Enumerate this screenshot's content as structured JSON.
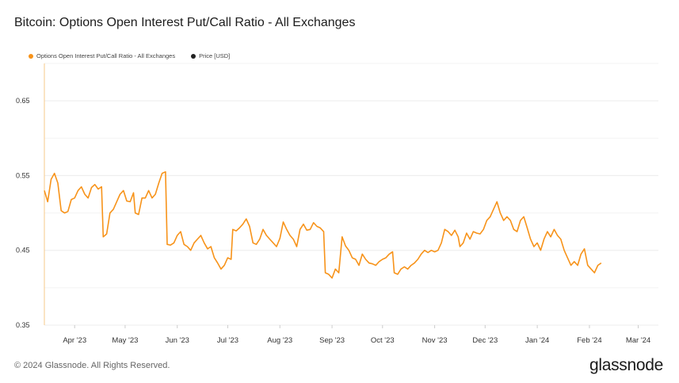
{
  "title": "Bitcoin: Options Open Interest Put/Call Ratio - All Exchanges",
  "legend": {
    "series_label": "Options Open Interest Put/Call Ratio - All Exchanges",
    "price_label": "Price [USD]"
  },
  "footer": {
    "copyright": "© 2024 Glassnode. All Rights Reserved.",
    "brand": "glassnode"
  },
  "colors": {
    "series": "#f7931a",
    "price": "#222222",
    "grid": "#ececec"
  },
  "chart_data": {
    "type": "line",
    "title": "Bitcoin: Options Open Interest Put/Call Ratio - All Exchanges",
    "ylim": [
      0.35,
      0.7
    ],
    "y_ticks": [
      "0.65",
      "0.55",
      "0.45",
      "0.35"
    ],
    "x_ticks": [
      "Apr '23",
      "May '23",
      "Jun '23",
      "Jul '23",
      "Aug '23",
      "Sep '23",
      "Oct '23",
      "Nov '23",
      "Dec '23",
      "Jan '24",
      "Feb '24",
      "Mar '24"
    ],
    "xlim": [
      "2023-03-14",
      "2024-03-13"
    ],
    "grid": true,
    "legend_position": "top-left",
    "series": [
      {
        "name": "Options Open Interest Put/Call Ratio - All Exchanges",
        "color": "#f7931a",
        "points": [
          [
            "2023-03-14",
            0.53
          ],
          [
            "2023-03-16",
            0.515
          ],
          [
            "2023-03-18",
            0.545
          ],
          [
            "2023-03-20",
            0.553
          ],
          [
            "2023-03-22",
            0.54
          ],
          [
            "2023-03-24",
            0.503
          ],
          [
            "2023-03-26",
            0.5
          ],
          [
            "2023-03-28",
            0.502
          ],
          [
            "2023-03-30",
            0.518
          ],
          [
            "2023-04-01",
            0.52
          ],
          [
            "2023-04-03",
            0.53
          ],
          [
            "2023-04-05",
            0.535
          ],
          [
            "2023-04-07",
            0.525
          ],
          [
            "2023-04-09",
            0.52
          ],
          [
            "2023-04-11",
            0.534
          ],
          [
            "2023-04-13",
            0.538
          ],
          [
            "2023-04-15",
            0.532
          ],
          [
            "2023-04-17",
            0.535
          ],
          [
            "2023-04-18",
            0.468
          ],
          [
            "2023-04-20",
            0.472
          ],
          [
            "2023-04-22",
            0.5
          ],
          [
            "2023-04-24",
            0.505
          ],
          [
            "2023-04-26",
            0.515
          ],
          [
            "2023-04-28",
            0.525
          ],
          [
            "2023-04-30",
            0.53
          ],
          [
            "2023-05-02",
            0.516
          ],
          [
            "2023-05-04",
            0.515
          ],
          [
            "2023-05-06",
            0.527
          ],
          [
            "2023-05-07",
            0.5
          ],
          [
            "2023-05-09",
            0.498
          ],
          [
            "2023-05-11",
            0.52
          ],
          [
            "2023-05-13",
            0.52
          ],
          [
            "2023-05-15",
            0.53
          ],
          [
            "2023-05-17",
            0.52
          ],
          [
            "2023-05-19",
            0.525
          ],
          [
            "2023-05-21",
            0.54
          ],
          [
            "2023-05-23",
            0.553
          ],
          [
            "2023-05-25",
            0.555
          ],
          [
            "2023-05-26",
            0.458
          ],
          [
            "2023-05-28",
            0.457
          ],
          [
            "2023-05-30",
            0.46
          ],
          [
            "2023-06-01",
            0.47
          ],
          [
            "2023-06-03",
            0.475
          ],
          [
            "2023-06-05",
            0.458
          ],
          [
            "2023-06-07",
            0.455
          ],
          [
            "2023-06-09",
            0.45
          ],
          [
            "2023-06-11",
            0.46
          ],
          [
            "2023-06-13",
            0.465
          ],
          [
            "2023-06-15",
            0.47
          ],
          [
            "2023-06-17",
            0.46
          ],
          [
            "2023-06-19",
            0.452
          ],
          [
            "2023-06-21",
            0.455
          ],
          [
            "2023-06-23",
            0.44
          ],
          [
            "2023-06-25",
            0.433
          ],
          [
            "2023-06-27",
            0.425
          ],
          [
            "2023-06-29",
            0.43
          ],
          [
            "2023-07-01",
            0.44
          ],
          [
            "2023-07-03",
            0.438
          ],
          [
            "2023-07-04",
            0.478
          ],
          [
            "2023-07-06",
            0.476
          ],
          [
            "2023-07-08",
            0.48
          ],
          [
            "2023-07-10",
            0.485
          ],
          [
            "2023-07-12",
            0.492
          ],
          [
            "2023-07-14",
            0.482
          ],
          [
            "2023-07-16",
            0.46
          ],
          [
            "2023-07-18",
            0.458
          ],
          [
            "2023-07-20",
            0.465
          ],
          [
            "2023-07-22",
            0.478
          ],
          [
            "2023-07-24",
            0.47
          ],
          [
            "2023-07-26",
            0.465
          ],
          [
            "2023-07-28",
            0.46
          ],
          [
            "2023-07-30",
            0.455
          ],
          [
            "2023-08-01",
            0.466
          ],
          [
            "2023-08-03",
            0.488
          ],
          [
            "2023-08-05",
            0.478
          ],
          [
            "2023-08-07",
            0.47
          ],
          [
            "2023-08-09",
            0.465
          ],
          [
            "2023-08-11",
            0.455
          ],
          [
            "2023-08-13",
            0.478
          ],
          [
            "2023-08-15",
            0.485
          ],
          [
            "2023-08-17",
            0.477
          ],
          [
            "2023-08-19",
            0.478
          ],
          [
            "2023-08-21",
            0.487
          ],
          [
            "2023-08-23",
            0.482
          ],
          [
            "2023-08-25",
            0.48
          ],
          [
            "2023-08-27",
            0.475
          ],
          [
            "2023-08-28",
            0.42
          ],
          [
            "2023-08-30",
            0.418
          ],
          [
            "2023-09-01",
            0.413
          ],
          [
            "2023-09-03",
            0.425
          ],
          [
            "2023-09-05",
            0.42
          ],
          [
            "2023-09-07",
            0.468
          ],
          [
            "2023-09-09",
            0.456
          ],
          [
            "2023-09-11",
            0.45
          ],
          [
            "2023-09-13",
            0.44
          ],
          [
            "2023-09-15",
            0.438
          ],
          [
            "2023-09-17",
            0.43
          ],
          [
            "2023-09-19",
            0.445
          ],
          [
            "2023-09-21",
            0.438
          ],
          [
            "2023-09-23",
            0.433
          ],
          [
            "2023-09-25",
            0.432
          ],
          [
            "2023-09-27",
            0.43
          ],
          [
            "2023-09-29",
            0.435
          ],
          [
            "2023-10-01",
            0.438
          ],
          [
            "2023-10-03",
            0.44
          ],
          [
            "2023-10-05",
            0.445
          ],
          [
            "2023-10-07",
            0.448
          ],
          [
            "2023-10-08",
            0.42
          ],
          [
            "2023-10-10",
            0.418
          ],
          [
            "2023-10-12",
            0.425
          ],
          [
            "2023-10-14",
            0.428
          ],
          [
            "2023-10-16",
            0.425
          ],
          [
            "2023-10-18",
            0.43
          ],
          [
            "2023-10-20",
            0.433
          ],
          [
            "2023-10-22",
            0.438
          ],
          [
            "2023-10-24",
            0.445
          ],
          [
            "2023-10-26",
            0.45
          ],
          [
            "2023-10-28",
            0.447
          ],
          [
            "2023-10-30",
            0.45
          ],
          [
            "2023-11-01",
            0.448
          ],
          [
            "2023-11-03",
            0.45
          ],
          [
            "2023-11-05",
            0.46
          ],
          [
            "2023-11-07",
            0.478
          ],
          [
            "2023-11-09",
            0.475
          ],
          [
            "2023-11-11",
            0.47
          ],
          [
            "2023-11-13",
            0.477
          ],
          [
            "2023-11-15",
            0.468
          ],
          [
            "2023-11-16",
            0.455
          ],
          [
            "2023-11-18",
            0.46
          ],
          [
            "2023-11-20",
            0.473
          ],
          [
            "2023-11-22",
            0.465
          ],
          [
            "2023-11-24",
            0.475
          ],
          [
            "2023-11-26",
            0.473
          ],
          [
            "2023-11-28",
            0.472
          ],
          [
            "2023-11-30",
            0.478
          ],
          [
            "2023-12-02",
            0.49
          ],
          [
            "2023-12-04",
            0.495
          ],
          [
            "2023-12-06",
            0.505
          ],
          [
            "2023-12-08",
            0.515
          ],
          [
            "2023-12-10",
            0.5
          ],
          [
            "2023-12-12",
            0.49
          ],
          [
            "2023-12-14",
            0.495
          ],
          [
            "2023-12-16",
            0.49
          ],
          [
            "2023-12-18",
            0.478
          ],
          [
            "2023-12-20",
            0.475
          ],
          [
            "2023-12-22",
            0.49
          ],
          [
            "2023-12-24",
            0.495
          ],
          [
            "2023-12-26",
            0.48
          ],
          [
            "2023-12-28",
            0.465
          ],
          [
            "2023-12-30",
            0.455
          ],
          [
            "2024-01-01",
            0.46
          ],
          [
            "2024-01-03",
            0.45
          ],
          [
            "2024-01-05",
            0.465
          ],
          [
            "2024-01-07",
            0.475
          ],
          [
            "2024-01-09",
            0.468
          ],
          [
            "2024-01-11",
            0.478
          ],
          [
            "2024-01-13",
            0.47
          ],
          [
            "2024-01-15",
            0.465
          ],
          [
            "2024-01-17",
            0.45
          ],
          [
            "2024-01-19",
            0.44
          ],
          [
            "2024-01-21",
            0.43
          ],
          [
            "2024-01-23",
            0.435
          ],
          [
            "2024-01-25",
            0.43
          ],
          [
            "2024-01-27",
            0.445
          ],
          [
            "2024-01-29",
            0.452
          ],
          [
            "2024-01-31",
            0.43
          ],
          [
            "2024-02-02",
            0.425
          ],
          [
            "2024-02-04",
            0.42
          ],
          [
            "2024-02-06",
            0.43
          ],
          [
            "2024-02-08",
            0.433
          ]
        ]
      }
    ]
  }
}
